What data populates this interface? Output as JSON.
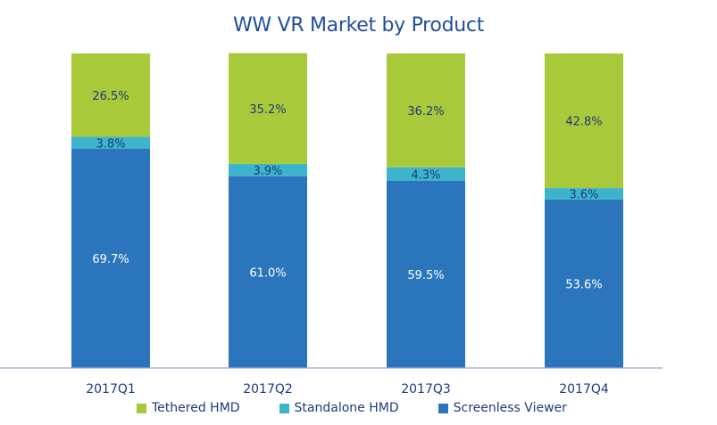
{
  "chart_data": {
    "type": "bar",
    "stacked": true,
    "title": "WW VR Market by Product",
    "categories": [
      "2017Q1",
      "2017Q2",
      "2017Q3",
      "2017Q4"
    ],
    "series": [
      {
        "name": "Screenless Viewer",
        "color": "#2a75bb",
        "values": [
          69.7,
          61.0,
          59.5,
          53.6
        ],
        "labels": [
          "69.7%",
          "61.0%",
          "59.5%",
          "53.6%"
        ]
      },
      {
        "name": "Standalone HMD",
        "color": "#3cb4cc",
        "values": [
          3.8,
          3.9,
          4.3,
          3.6
        ],
        "labels": [
          "3.8%",
          "3.9%",
          "4.3%",
          "3.6%"
        ]
      },
      {
        "name": "Tethered HMD",
        "color": "#a8c93a",
        "values": [
          26.5,
          35.2,
          36.2,
          42.8
        ],
        "labels": [
          "26.5%",
          "35.2%",
          "36.2%",
          "42.8%"
        ]
      }
    ],
    "legend": [
      "Tethered HMD",
      "Standalone HMD",
      "Screenless Viewer"
    ],
    "ylim": [
      0,
      100
    ],
    "xlabel": "",
    "ylabel": ""
  }
}
